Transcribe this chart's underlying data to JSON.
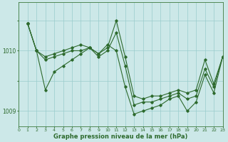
{
  "line1_x": [
    1,
    2,
    3,
    4,
    5,
    6,
    7,
    8,
    9,
    10,
    11,
    12,
    13,
    14,
    15,
    16,
    17,
    18,
    19,
    20,
    21,
    22,
    23
  ],
  "line1_y": [
    10104.5,
    10100.0,
    10099.0,
    10099.5,
    10100.0,
    10100.5,
    10101.0,
    10100.5,
    10099.5,
    10100.5,
    10105.0,
    10099.0,
    10092.5,
    10092.0,
    10092.5,
    10092.5,
    10093.0,
    10093.5,
    10093.0,
    10093.5,
    10098.5,
    10094.5,
    10099.0
  ],
  "line2_x": [
    1,
    2,
    3,
    4,
    5,
    6,
    7,
    8,
    9,
    10,
    11,
    12,
    13,
    14,
    15,
    16,
    17,
    18,
    19,
    20,
    21,
    22,
    23
  ],
  "line2_y": [
    10104.5,
    10100.0,
    10098.5,
    10099.0,
    10099.5,
    10100.0,
    10100.0,
    10100.5,
    10099.0,
    10100.0,
    10103.0,
    10097.5,
    10091.0,
    10091.5,
    10091.5,
    10092.0,
    10092.5,
    10093.0,
    10092.0,
    10092.5,
    10097.0,
    10094.0,
    10099.0
  ],
  "line3_x": [
    1,
    2,
    3,
    4,
    5,
    6,
    7,
    8,
    9,
    10,
    11,
    12,
    13,
    14,
    15,
    16,
    17,
    18,
    19,
    20,
    21,
    22,
    23
  ],
  "line3_y": [
    10104.5,
    10100.0,
    10093.5,
    10096.5,
    10097.5,
    10098.5,
    10099.5,
    10100.5,
    10099.5,
    10101.0,
    10100.0,
    10094.0,
    10089.5,
    10090.0,
    10090.5,
    10091.0,
    10092.0,
    10092.5,
    10090.0,
    10091.5,
    10096.0,
    10093.0,
    10099.0
  ],
  "bg_color": "#cce8e8",
  "line_color": "#2d6a2d",
  "grid_color": "#99cccc",
  "ylim": [
    10087.5,
    10108
  ],
  "xlim": [
    0,
    23
  ],
  "xticks": [
    0,
    1,
    2,
    3,
    4,
    5,
    6,
    7,
    8,
    9,
    10,
    11,
    12,
    13,
    14,
    15,
    16,
    17,
    18,
    19,
    20,
    21,
    22,
    23
  ],
  "xlabel": "Graphe pression niveau de la mer (hPa)",
  "marker": "D",
  "marker_size": 1.8,
  "line_width": 0.8,
  "ytick_labels": [
    "1009",
    "",
    "1010",
    ""
  ],
  "ytick_positions": [
    10090,
    10095,
    10100,
    10105
  ]
}
